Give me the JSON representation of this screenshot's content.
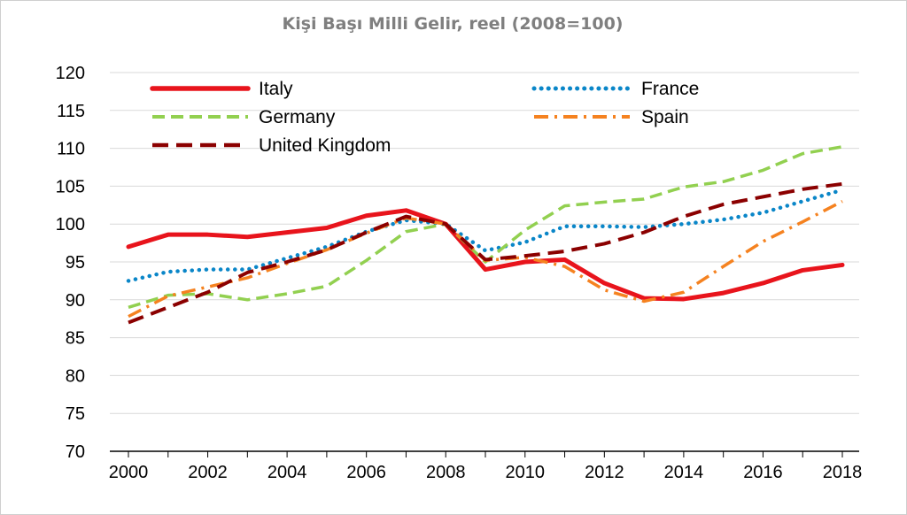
{
  "chart_data": {
    "type": "line",
    "title": "Kişi Başı Milli Gelir, reel (2008=100)",
    "xlabel": "",
    "ylabel": "",
    "x": [
      2000,
      2001,
      2002,
      2003,
      2004,
      2005,
      2006,
      2007,
      2008,
      2009,
      2010,
      2011,
      2012,
      2013,
      2014,
      2015,
      2016,
      2017,
      2018
    ],
    "xticks": [
      "2000",
      "2002",
      "2004",
      "2006",
      "2008",
      "2010",
      "2012",
      "2014",
      "2016",
      "2018"
    ],
    "yticks": [
      "70",
      "75",
      "80",
      "85",
      "90",
      "95",
      "100",
      "105",
      "110",
      "115",
      "120"
    ],
    "ylim": [
      70,
      120
    ],
    "grid": true,
    "legend_position": "top",
    "series": [
      {
        "name": "Italy",
        "color": "#e8141c",
        "style": "solid",
        "values": [
          97.0,
          98.6,
          98.6,
          98.3,
          98.9,
          99.5,
          101.1,
          101.8,
          100.0,
          94.0,
          95.0,
          95.3,
          92.2,
          90.2,
          90.1,
          90.9,
          92.2,
          93.9,
          94.6
        ]
      },
      {
        "name": "France",
        "color": "#0a86c8",
        "style": "dotted",
        "values": [
          92.5,
          93.7,
          94.0,
          94.0,
          95.5,
          97.0,
          99.0,
          100.5,
          100.0,
          96.5,
          97.6,
          99.7,
          99.7,
          99.6,
          100.0,
          100.6,
          101.5,
          103.0,
          104.5
        ]
      },
      {
        "name": "Germany",
        "color": "#92d050",
        "style": "dashed",
        "values": [
          89.0,
          90.6,
          90.8,
          90.0,
          90.8,
          91.8,
          95.2,
          99.0,
          100.0,
          95.0,
          99.2,
          102.4,
          102.9,
          103.3,
          104.9,
          105.6,
          107.1,
          109.3,
          110.2
        ]
      },
      {
        "name": "Spain",
        "color": "#f58220",
        "style": "dashdot",
        "values": [
          87.8,
          90.5,
          91.7,
          92.9,
          94.8,
          96.6,
          98.8,
          100.8,
          100.0,
          95.2,
          95.6,
          94.4,
          91.3,
          89.8,
          91.0,
          94.4,
          97.7,
          100.3,
          103.0
        ]
      },
      {
        "name": "United Kingdom",
        "color": "#8b0000",
        "style": "longdash",
        "values": [
          87.0,
          89.0,
          91.0,
          93.6,
          95.0,
          96.6,
          98.9,
          101.0,
          100.0,
          95.3,
          95.8,
          96.4,
          97.4,
          98.9,
          101.0,
          102.6,
          103.6,
          104.6,
          105.3
        ]
      }
    ]
  }
}
